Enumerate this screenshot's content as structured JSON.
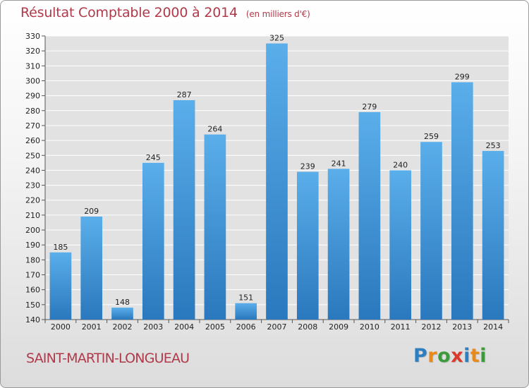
{
  "title": "Résultat Comptable 2000 à 2014",
  "unit": "(en milliers d'€)",
  "commune": "SAINT-MARTIN-LONGUEAU",
  "brand": {
    "letters": [
      "P",
      "r",
      "o",
      "x",
      "i",
      "t",
      "i"
    ],
    "colors": [
      "#2e7fc1",
      "#e8891c",
      "#3c9a3c",
      "#d93a2b",
      "#2e7fc1",
      "#e8891c",
      "#3c9a3c"
    ]
  },
  "chart_data": {
    "type": "bar",
    "categories": [
      "2000",
      "2001",
      "2002",
      "2003",
      "2004",
      "2005",
      "2006",
      "2007",
      "2008",
      "2009",
      "2010",
      "2011",
      "2012",
      "2013",
      "2014"
    ],
    "values": [
      185,
      209,
      148,
      245,
      287,
      264,
      151,
      325,
      239,
      241,
      279,
      240,
      259,
      299,
      253
    ],
    "ylim": [
      140,
      330
    ],
    "yticks": [
      140,
      150,
      160,
      170,
      180,
      190,
      200,
      210,
      220,
      230,
      240,
      250,
      260,
      270,
      280,
      290,
      300,
      310,
      320,
      330
    ],
    "grid": true,
    "bar_color": "#3a8fd6",
    "grid_color": "#ffffff",
    "plot_bg": "#e2e2e2"
  }
}
